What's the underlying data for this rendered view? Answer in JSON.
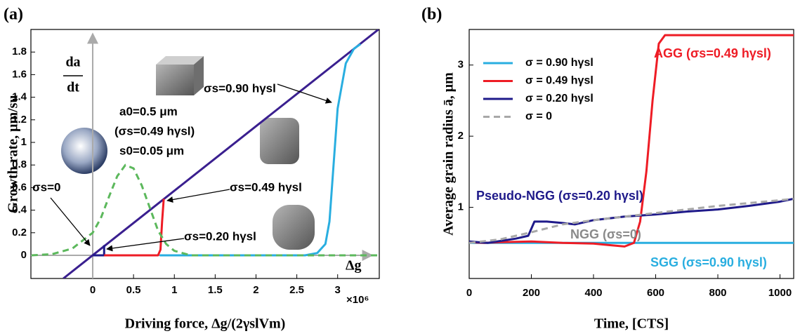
{
  "chart_data": [
    {
      "type": "line",
      "panel_label": "(a)",
      "xlabel": "Driving force, Δg/(2γslVm)",
      "ylabel": "Growth rate, μm/su",
      "x_offset_label": "×10⁶",
      "x_arrow_label": "Δg",
      "y_arrow_label_num": "da",
      "y_arrow_label_den": "dt",
      "xlim": [
        -0.757,
        3.51
      ],
      "ylim": [
        -0.205,
        2.0
      ],
      "xticks": [
        0,
        0.5,
        1,
        1.5,
        2,
        2.5,
        3
      ],
      "yticks": [
        0,
        0.2,
        0.4,
        0.6,
        0.8,
        1.0,
        1.2,
        1.4,
        1.6,
        1.8
      ],
      "series": [
        {
          "color": "#3a1f8f",
          "x": [
            -0.36,
            3.5
          ],
          "values": [
            -0.205,
            2.0
          ]
        },
        {
          "color": "#1f1a8a",
          "x": [
            0,
            0.14,
            0.14
          ],
          "values": [
            0,
            0,
            0.09
          ]
        },
        {
          "color": "#ee1c25",
          "x": [
            0.14,
            0.8,
            0.83,
            0.85,
            0.87
          ],
          "values": [
            0,
            0,
            0.05,
            0.3,
            0.5
          ]
        },
        {
          "color": "#29aee0",
          "x": [
            0.82,
            2.6,
            2.75,
            2.85,
            2.9,
            2.95,
            3.0,
            3.1,
            3.2,
            3.28
          ],
          "values": [
            0,
            0,
            0.02,
            0.1,
            0.3,
            0.8,
            1.3,
            1.7,
            1.83,
            1.87
          ]
        },
        {
          "color": "#5cb85c",
          "dashed": true,
          "x": [
            -0.75,
            -0.5,
            -0.25,
            0,
            0.1,
            0.2,
            0.3,
            0.4,
            0.5,
            0.6,
            0.7,
            0.8,
            0.9,
            1.0,
            1.2,
            3.5
          ],
          "values": [
            0,
            0.01,
            0.06,
            0.2,
            0.33,
            0.52,
            0.7,
            0.8,
            0.77,
            0.62,
            0.42,
            0.22,
            0.1,
            0.04,
            0,
            0
          ]
        }
      ],
      "annotations": [
        "σs=0.90 hγsl",
        "a0=0.5 μm",
        "(σs=0.49 hγsl)",
        "s0=0.05 μm",
        "σs=0",
        "σs=0.49 hγsl",
        "σs=0.20 hγsl"
      ]
    },
    {
      "type": "line",
      "panel_label": "(b)",
      "xlabel": "Time, [CTS]",
      "ylabel": "Average grain radius ā, μm",
      "xlim": [
        0,
        1044
      ],
      "ylim": [
        0,
        3.5
      ],
      "xticks": [
        0,
        200,
        400,
        600,
        800,
        1000
      ],
      "yticks": [
        1,
        2,
        3
      ],
      "series": [
        {
          "name": "σ = 0.90 hγsl",
          "color": "#29aee0",
          "x": [
            0,
            1044
          ],
          "values": [
            0.5,
            0.5
          ]
        },
        {
          "name": "σ = 0.49 hγsl",
          "color": "#ee1c25",
          "x": [
            0,
            50,
            100,
            200,
            300,
            400,
            450,
            500,
            530,
            550,
            570,
            590,
            610,
            630,
            700,
            1044
          ],
          "values": [
            0.51,
            0.5,
            0.51,
            0.52,
            0.5,
            0.49,
            0.47,
            0.45,
            0.5,
            0.8,
            1.5,
            2.5,
            3.3,
            3.42,
            3.42,
            3.42
          ]
        },
        {
          "name": "σ = 0.20 hγsl",
          "color": "#1f1a8a",
          "x": [
            0,
            60,
            150,
            190,
            210,
            250,
            300,
            340,
            400,
            500,
            600,
            700,
            800,
            900,
            1000,
            1044
          ],
          "values": [
            0.52,
            0.5,
            0.56,
            0.6,
            0.8,
            0.8,
            0.78,
            0.76,
            0.82,
            0.87,
            0.9,
            0.94,
            0.97,
            1.02,
            1.08,
            1.12
          ]
        },
        {
          "name": "σ = 0",
          "color": "#a8a8a8",
          "dashed": true,
          "x": [
            0,
            100,
            200,
            300,
            400,
            500,
            600,
            700,
            800,
            900,
            1000,
            1044
          ],
          "values": [
            0.5,
            0.55,
            0.65,
            0.76,
            0.82,
            0.87,
            0.92,
            0.97,
            1.02,
            1.06,
            1.1,
            1.12
          ]
        }
      ],
      "annotations": [
        "AGG (σs=0.49 hγsl)",
        "Pseudo-NGG (σs=0.20 hγsl)",
        "NGG (σs=0)",
        "SGG (σs=0.90 hγsl)"
      ]
    }
  ]
}
